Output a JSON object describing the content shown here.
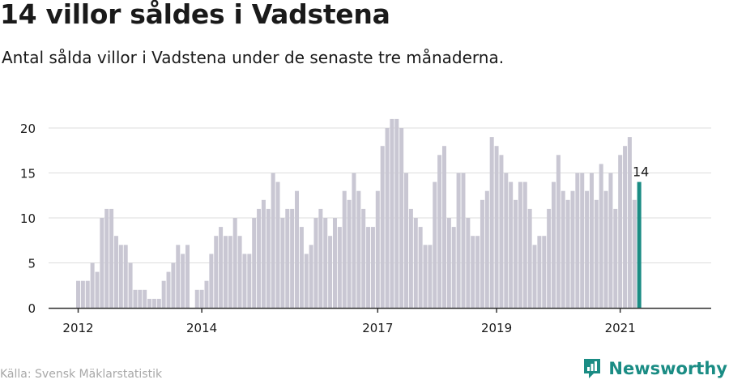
{
  "header": {
    "title": "14 villor såldes i Vadstena",
    "subtitle": "Antal sålda villor i Vadstena under de senaste tre månaderna."
  },
  "footer": {
    "source": "Källa: Svensk Mäklarstatistik",
    "brand": "Newsworthy"
  },
  "colors": {
    "bar": "#c9c7d3",
    "highlight": "#1a8c84",
    "grid": "#dddddd",
    "axis": "#333333",
    "text": "#1a1a1a"
  },
  "icons": {
    "brand": "newsworthy-logo-icon"
  },
  "chart_data": {
    "type": "bar",
    "title": "",
    "xlabel": "",
    "ylabel": "",
    "ylim": [
      0,
      20
    ],
    "yticks": [
      0,
      5,
      10,
      15,
      20
    ],
    "grid": true,
    "x_tick_labels": [
      "2012",
      "2014",
      "2017",
      "2019",
      "2021"
    ],
    "x_tick_index": [
      0,
      26,
      63,
      88,
      114
    ],
    "highlight_label": "14",
    "values": [
      3,
      3,
      3,
      5,
      4,
      10,
      11,
      11,
      8,
      7,
      7,
      5,
      2,
      2,
      2,
      1,
      1,
      1,
      3,
      4,
      5,
      7,
      6,
      7,
      0,
      2,
      2,
      3,
      6,
      8,
      9,
      8,
      8,
      10,
      8,
      6,
      6,
      10,
      11,
      12,
      11,
      15,
      14,
      10,
      11,
      11,
      13,
      9,
      6,
      7,
      10,
      11,
      10,
      8,
      10,
      9,
      13,
      12,
      15,
      13,
      11,
      9,
      9,
      13,
      18,
      20,
      21,
      21,
      20,
      15,
      11,
      10,
      9,
      7,
      7,
      14,
      17,
      18,
      10,
      9,
      15,
      15,
      10,
      8,
      8,
      12,
      13,
      19,
      18,
      17,
      15,
      14,
      12,
      14,
      14,
      11,
      7,
      8,
      8,
      11,
      14,
      17,
      13,
      12,
      13,
      15,
      15,
      13,
      15,
      12,
      16,
      13,
      15,
      11,
      17,
      18,
      19,
      12,
      14
    ]
  }
}
